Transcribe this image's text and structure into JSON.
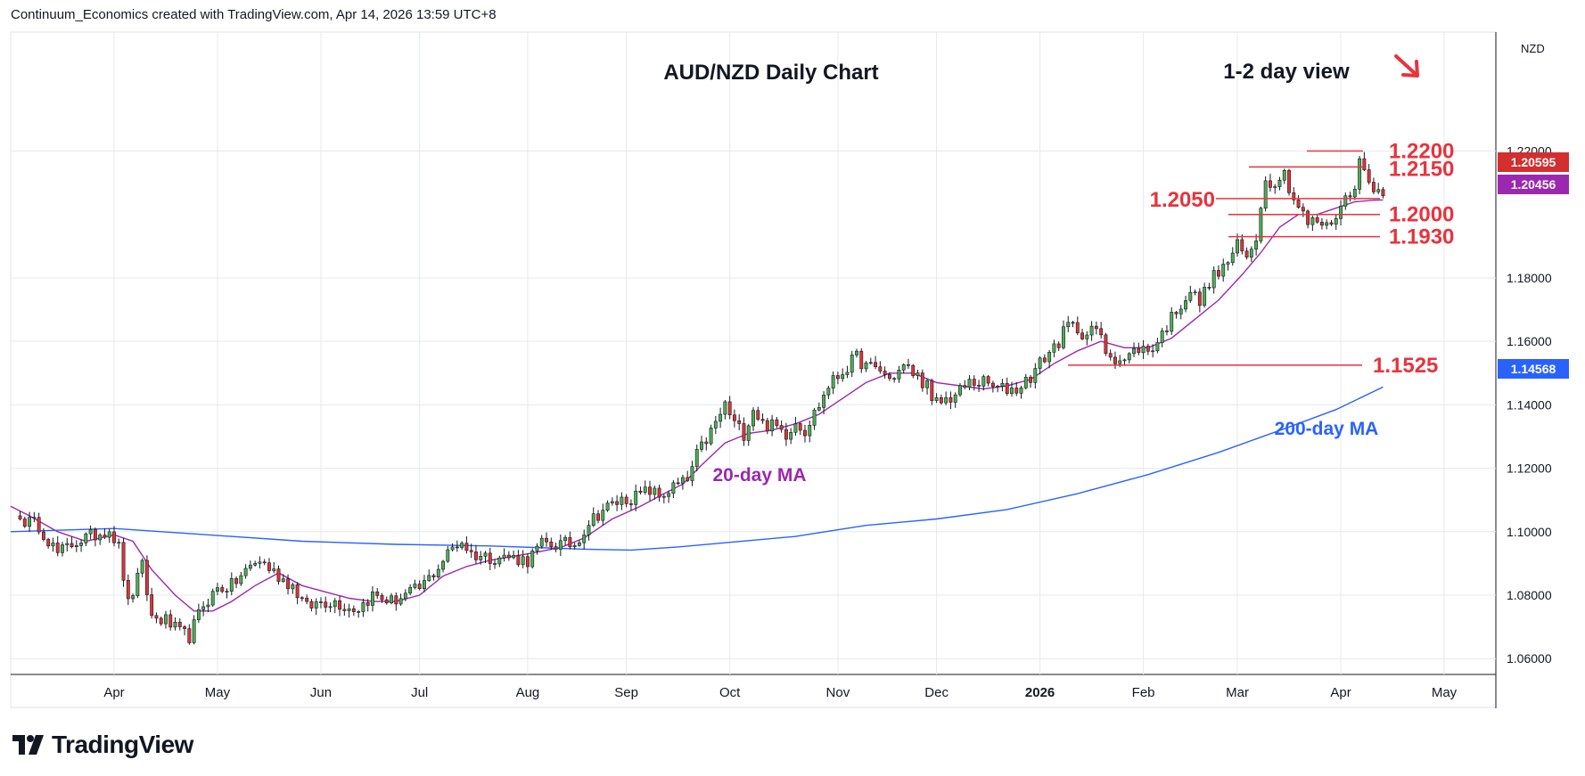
{
  "header": {
    "attribution": "Continuum_Economics created with TradingView.com, Apr 14, 2026 13:59 UTC+8"
  },
  "brand": {
    "name": "TradingView"
  },
  "colors": {
    "up": "#4caf50",
    "down": "#e03535",
    "ma20": "#9c27b0",
    "ma200": "#2962ff",
    "level": "#e8333d",
    "grid": "#e6e9ef",
    "axis": "#131722"
  },
  "chart_data": {
    "type": "candlestick",
    "title": "AUD/NZD Daily Chart",
    "subtitle": "1-2 day view",
    "view_arrow": "down-right",
    "currency_label": "NZD",
    "ylim": [
      1.055,
      1.2575
    ],
    "y_ticks": [
      {
        "value": 1.22,
        "label": "1.22000"
      },
      {
        "value": 1.18,
        "label": "1.18000"
      },
      {
        "value": 1.16,
        "label": "1.16000"
      },
      {
        "value": 1.14,
        "label": "1.14000"
      },
      {
        "value": 1.12,
        "label": "1.12000"
      },
      {
        "value": 1.1,
        "label": "1.10000"
      },
      {
        "value": 1.08,
        "label": "1.08000"
      },
      {
        "value": 1.06,
        "label": "1.06000"
      }
    ],
    "x_ticks": [
      {
        "label": "Apr",
        "i": 20
      },
      {
        "label": "May",
        "i": 42
      },
      {
        "label": "Jun",
        "i": 64
      },
      {
        "label": "Jul",
        "i": 85
      },
      {
        "label": "Aug",
        "i": 108
      },
      {
        "label": "Sep",
        "i": 129
      },
      {
        "label": "Oct",
        "i": 151
      },
      {
        "label": "Nov",
        "i": 174
      },
      {
        "label": "Dec",
        "i": 195
      },
      {
        "label": "2026",
        "i": 217
      },
      {
        "label": "Feb",
        "i": 239
      },
      {
        "label": "Mar",
        "i": 259
      },
      {
        "label": "Apr",
        "i": 281
      },
      {
        "label": "May",
        "i": 303
      }
    ],
    "index_range": [
      -2,
      314
    ],
    "anchors": [
      [
        0,
        1.104
      ],
      [
        4,
        1.102
      ],
      [
        8,
        1.093
      ],
      [
        12,
        1.097
      ],
      [
        16,
        1.099
      ],
      [
        19,
        1.101
      ],
      [
        21,
        1.095
      ],
      [
        23,
        1.077
      ],
      [
        26,
        1.089
      ],
      [
        28,
        1.073
      ],
      [
        31,
        1.072
      ],
      [
        34,
        1.068
      ],
      [
        36,
        1.067
      ],
      [
        39,
        1.077
      ],
      [
        42,
        1.082
      ],
      [
        45,
        1.083
      ],
      [
        49,
        1.089
      ],
      [
        51,
        1.091
      ],
      [
        55,
        1.086
      ],
      [
        58,
        1.083
      ],
      [
        61,
        1.076
      ],
      [
        64,
        1.078
      ],
      [
        67,
        1.078
      ],
      [
        70,
        1.076
      ],
      [
        72,
        1.076
      ],
      [
        75,
        1.08
      ],
      [
        79,
        1.078
      ],
      [
        82,
        1.08
      ],
      [
        85,
        1.082
      ],
      [
        88,
        1.087
      ],
      [
        92,
        1.095
      ],
      [
        94,
        1.097
      ],
      [
        96,
        1.093
      ],
      [
        100,
        1.092
      ],
      [
        104,
        1.092
      ],
      [
        108,
        1.091
      ],
      [
        111,
        1.096
      ],
      [
        115,
        1.096
      ],
      [
        118,
        1.096
      ],
      [
        121,
        1.103
      ],
      [
        124,
        1.107
      ],
      [
        128,
        1.11
      ],
      [
        131,
        1.111
      ],
      [
        134,
        1.113
      ],
      [
        136,
        1.111
      ],
      [
        139,
        1.114
      ],
      [
        142,
        1.116
      ],
      [
        144,
        1.124
      ],
      [
        146,
        1.129
      ],
      [
        148,
        1.134
      ],
      [
        150,
        1.14
      ],
      [
        152,
        1.134
      ],
      [
        154,
        1.131
      ],
      [
        156,
        1.139
      ],
      [
        158,
        1.134
      ],
      [
        161,
        1.133
      ],
      [
        163,
        1.131
      ],
      [
        165,
        1.135
      ],
      [
        167,
        1.132
      ],
      [
        170,
        1.14
      ],
      [
        172,
        1.146
      ],
      [
        174,
        1.149
      ],
      [
        176,
        1.152
      ],
      [
        178,
        1.155
      ],
      [
        180,
        1.152
      ],
      [
        183,
        1.151
      ],
      [
        185,
        1.148
      ],
      [
        188,
        1.152
      ],
      [
        191,
        1.149
      ],
      [
        193,
        1.146
      ],
      [
        194,
        1.14
      ],
      [
        196,
        1.141
      ],
      [
        199,
        1.143
      ],
      [
        202,
        1.147
      ],
      [
        205,
        1.147
      ],
      [
        208,
        1.145
      ],
      [
        212,
        1.145
      ],
      [
        215,
        1.149
      ],
      [
        218,
        1.155
      ],
      [
        221,
        1.16
      ],
      [
        223,
        1.165
      ],
      [
        225,
        1.164
      ],
      [
        227,
        1.162
      ],
      [
        229,
        1.164
      ],
      [
        231,
        1.157
      ],
      [
        233,
        1.155
      ],
      [
        235,
        1.154
      ],
      [
        238,
        1.158
      ],
      [
        240,
        1.157
      ],
      [
        242,
        1.16
      ],
      [
        244,
        1.165
      ],
      [
        246,
        1.17
      ],
      [
        249,
        1.176
      ],
      [
        251,
        1.172
      ],
      [
        253,
        1.179
      ],
      [
        256,
        1.183
      ],
      [
        259,
        1.19
      ],
      [
        261,
        1.186
      ],
      [
        263,
        1.193
      ],
      [
        264,
        1.204
      ],
      [
        265,
        1.21
      ],
      [
        267,
        1.211
      ],
      [
        269,
        1.213
      ],
      [
        271,
        1.205
      ],
      [
        273,
        1.2
      ],
      [
        274,
        1.197
      ],
      [
        276,
        1.198
      ],
      [
        278,
        1.196
      ],
      [
        280,
        1.2
      ],
      [
        282,
        1.205
      ],
      [
        284,
        1.21
      ],
      [
        285,
        1.216
      ],
      [
        286,
        1.214
      ],
      [
        287,
        1.21
      ],
      [
        289,
        1.208
      ],
      [
        290,
        1.2059
      ]
    ],
    "series": [
      {
        "name": "20-day MA",
        "label": "20-day MA",
        "color": "#9c27b0",
        "points": [
          [
            -2,
            1.108
          ],
          [
            2,
            1.105
          ],
          [
            8,
            1.1
          ],
          [
            14,
            1.097
          ],
          [
            20,
            1.099
          ],
          [
            24,
            1.097
          ],
          [
            28,
            1.088
          ],
          [
            33,
            1.08
          ],
          [
            37,
            1.075
          ],
          [
            41,
            1.075
          ],
          [
            45,
            1.078
          ],
          [
            50,
            1.083
          ],
          [
            55,
            1.087
          ],
          [
            60,
            1.083
          ],
          [
            65,
            1.081
          ],
          [
            70,
            1.079
          ],
          [
            75,
            1.078
          ],
          [
            80,
            1.078
          ],
          [
            85,
            1.08
          ],
          [
            90,
            1.086
          ],
          [
            95,
            1.089
          ],
          [
            100,
            1.091
          ],
          [
            108,
            1.093
          ],
          [
            115,
            1.095
          ],
          [
            120,
            1.098
          ],
          [
            126,
            1.104
          ],
          [
            132,
            1.108
          ],
          [
            137,
            1.112
          ],
          [
            141,
            1.115
          ],
          [
            145,
            1.121
          ],
          [
            150,
            1.128
          ],
          [
            155,
            1.131
          ],
          [
            160,
            1.132
          ],
          [
            165,
            1.134
          ],
          [
            170,
            1.137
          ],
          [
            175,
            1.142
          ],
          [
            180,
            1.147
          ],
          [
            185,
            1.15
          ],
          [
            190,
            1.15
          ],
          [
            195,
            1.147
          ],
          [
            200,
            1.146
          ],
          [
            205,
            1.145
          ],
          [
            210,
            1.146
          ],
          [
            215,
            1.148
          ],
          [
            220,
            1.153
          ],
          [
            225,
            1.157
          ],
          [
            230,
            1.16
          ],
          [
            235,
            1.158
          ],
          [
            240,
            1.158
          ],
          [
            245,
            1.161
          ],
          [
            250,
            1.167
          ],
          [
            255,
            1.173
          ],
          [
            260,
            1.181
          ],
          [
            264,
            1.188
          ],
          [
            268,
            1.196
          ],
          [
            272,
            1.2
          ],
          [
            276,
            1.2
          ],
          [
            280,
            1.202
          ],
          [
            284,
            1.204
          ],
          [
            288,
            1.2045
          ],
          [
            290,
            1.2046
          ]
        ]
      },
      {
        "name": "200-day MA",
        "label": "200-day MA",
        "color": "#2962ff",
        "points": [
          [
            -2,
            1.1
          ],
          [
            20,
            1.101
          ],
          [
            40,
            1.099
          ],
          [
            60,
            1.097
          ],
          [
            80,
            1.096
          ],
          [
            100,
            1.0955
          ],
          [
            120,
            1.0945
          ],
          [
            130,
            1.0942
          ],
          [
            140,
            1.0952
          ],
          [
            150,
            1.0965
          ],
          [
            165,
            1.0985
          ],
          [
            180,
            1.102
          ],
          [
            195,
            1.104
          ],
          [
            210,
            1.107
          ],
          [
            225,
            1.112
          ],
          [
            240,
            1.118
          ],
          [
            255,
            1.125
          ],
          [
            270,
            1.133
          ],
          [
            280,
            1.1385
          ],
          [
            290,
            1.1456
          ]
        ]
      }
    ],
    "levels": [
      {
        "label": "1.2200",
        "value": 1.22,
        "i0": 272,
        "i1": 287
      },
      {
        "label": "1.2150",
        "value": 1.215,
        "i0": 264,
        "i1": 287
      },
      {
        "label": "1.2050",
        "value": 1.205,
        "i0": 259,
        "i1": 290
      },
      {
        "label": "1.2000",
        "value": 1.2,
        "i0": 261,
        "i1": 290
      },
      {
        "label": "1.1930",
        "value": 1.193,
        "i0": 261,
        "i1": 290
      },
      {
        "label": "1.1525",
        "value": 1.1525,
        "i0": 227,
        "i1": 287
      }
    ],
    "price_badges": [
      {
        "label": "1.20595",
        "value": 1.20595,
        "color": "#d32f2f"
      },
      {
        "label": "1.20456",
        "value": 1.20456,
        "color": "#9c27b0"
      },
      {
        "label": "1.14568",
        "value": 1.14568,
        "color": "#2962ff"
      }
    ],
    "annotations": [
      {
        "text": "20-day MA",
        "color": "#9c27b0"
      },
      {
        "text": "200-day MA",
        "color": "#2962ff"
      }
    ]
  }
}
